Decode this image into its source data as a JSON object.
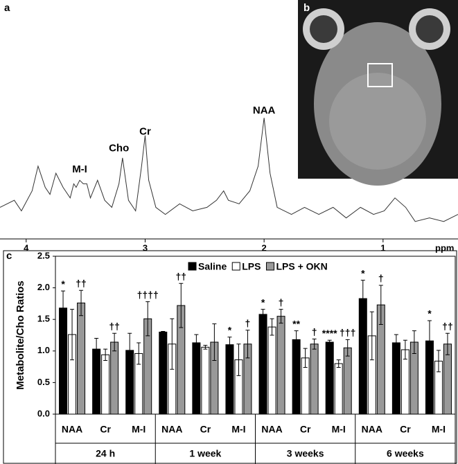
{
  "chart_data": [
    {
      "type": "line",
      "panel": "a",
      "xlabel": "ppm",
      "color": "#333333",
      "x": [
        4.22,
        4.1,
        4.04,
        3.95,
        3.9,
        3.84,
        3.8,
        3.75,
        3.69,
        3.63,
        3.6,
        3.58,
        3.55,
        3.52,
        3.49,
        3.46,
        3.4,
        3.34,
        3.28,
        3.22,
        3.19,
        3.14,
        3.08,
        3.03,
        3.0,
        2.97,
        2.91,
        2.83,
        2.71,
        2.6,
        2.48,
        2.4,
        2.34,
        2.3,
        2.21,
        2.12,
        2.05,
        2.0,
        1.95,
        1.89,
        1.77,
        1.66,
        1.54,
        1.42,
        1.31,
        1.19,
        1.08,
        0.99,
        0.9,
        0.81,
        0.73,
        0.61,
        0.49,
        0.37
      ],
      "values": [
        18,
        24,
        15,
        32,
        53,
        35,
        29,
        47,
        35,
        26,
        38,
        35,
        41,
        38,
        38,
        26,
        41,
        24,
        18,
        38,
        60,
        24,
        15,
        53,
        79,
        41,
        18,
        12,
        21,
        15,
        18,
        24,
        32,
        24,
        21,
        32,
        53,
        94,
        47,
        18,
        12,
        18,
        12,
        18,
        9,
        18,
        12,
        15,
        26,
        18,
        6,
        9,
        6,
        12
      ],
      "xlim": [
        4.22,
        0.37
      ],
      "xticks": [
        4,
        3,
        2,
        1
      ],
      "ylim": [
        0,
        100
      ],
      "annotations": [
        {
          "text": "NAA",
          "x": 2.0,
          "y": 100
        },
        {
          "text": "Cho",
          "x": 3.22,
          "y": 68
        },
        {
          "text": "Cr",
          "x": 3.0,
          "y": 82
        },
        {
          "text": "M-I",
          "x": 3.55,
          "y": 50
        }
      ]
    },
    {
      "type": "bar",
      "panel": "c",
      "ylabel": "Metabolite/Cho Ratios",
      "categories": [
        "NAA",
        "Cr",
        "M-I",
        "NAA",
        "Cr",
        "M-I",
        "NAA",
        "Cr",
        "M-I",
        "NAA",
        "Cr",
        "M-I"
      ],
      "groups": [
        "24 h",
        "1 week",
        "3 weeks",
        "6 weeks"
      ],
      "ylim": [
        0,
        2.5
      ],
      "yticks": [
        {
          "value": 0,
          "label": "0.0"
        },
        0.5,
        {
          "value": 1,
          "label": "1.0"
        },
        1.5,
        {
          "value": 2,
          "label": "2.0"
        },
        2.5
      ],
      "legend": "top",
      "series": [
        {
          "name": "Saline",
          "color": "#000000",
          "values": [
            1.68,
            1.03,
            1.01,
            1.3,
            1.13,
            1.1,
            1.58,
            1.18,
            1.14,
            1.83,
            1.13,
            1.16
          ],
          "errors": [
            0.27,
            0.17,
            0.27,
            0.01,
            0.13,
            0.12,
            0.08,
            0.14,
            0.03,
            0.29,
            0.13,
            0.32
          ],
          "labels": [
            "*",
            null,
            null,
            null,
            null,
            "*",
            "*",
            "**",
            "****",
            "*",
            null,
            "*"
          ]
        },
        {
          "name": "LPS",
          "color": "#ffffff",
          "values": [
            1.26,
            0.94,
            0.96,
            1.11,
            1.06,
            0.86,
            1.38,
            0.89,
            0.8,
            1.24,
            1.02,
            0.84
          ],
          "errors": [
            0.4,
            0.09,
            0.17,
            0.4,
            0.03,
            0.25,
            0.13,
            0.15,
            0.06,
            0.38,
            0.15,
            0.17
          ]
        },
        {
          "name": "LPS + OKN",
          "color": "#999999",
          "values": [
            1.76,
            1.14,
            1.51,
            1.72,
            1.14,
            1.11,
            1.55,
            1.11,
            1.05,
            1.73,
            1.14,
            1.11
          ],
          "errors": [
            0.2,
            0.14,
            0.27,
            0.35,
            0.29,
            0.22,
            0.11,
            0.08,
            0.13,
            0.31,
            0.18,
            0.17
          ],
          "labels": [
            "††",
            "††",
            "††††",
            "††",
            null,
            "†",
            "†",
            "†",
            "†††",
            "†",
            null,
            "††"
          ]
        }
      ]
    }
  ],
  "image_panel": {
    "label": "b"
  }
}
